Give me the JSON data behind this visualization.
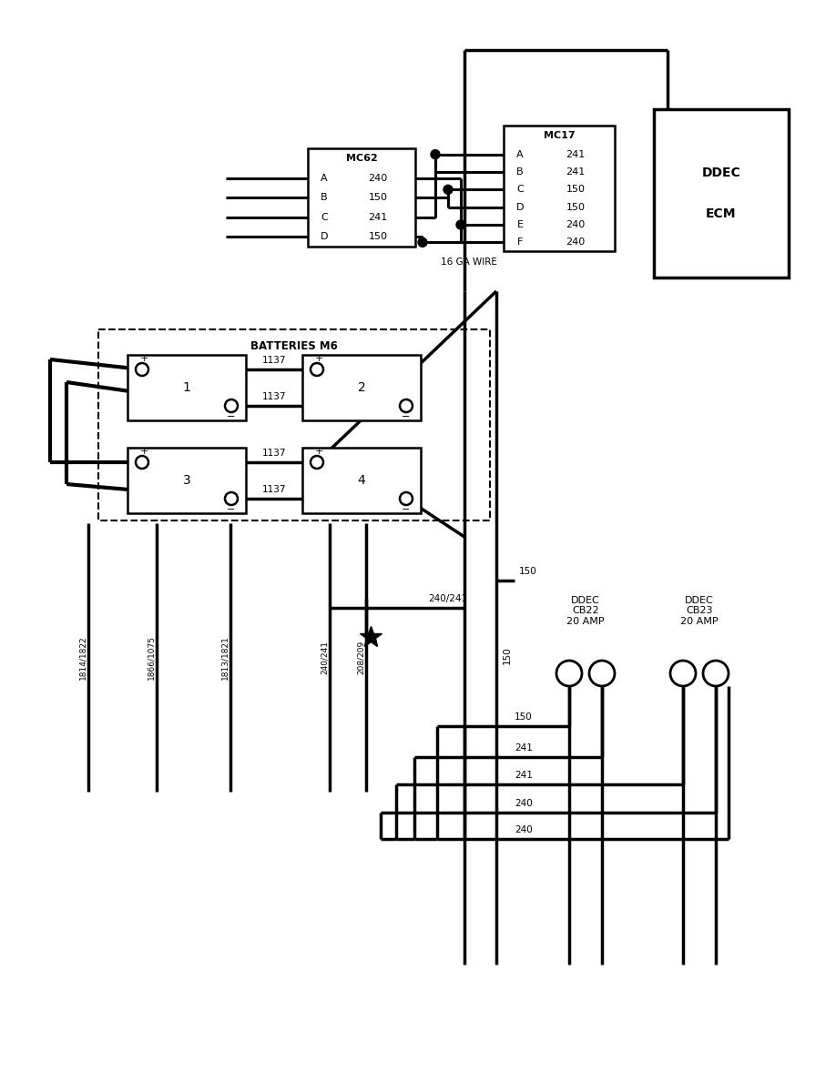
{
  "bg_color": "#ffffff",
  "mc62_rows": [
    [
      "A",
      "240"
    ],
    [
      "B",
      "150"
    ],
    [
      "C",
      "241"
    ],
    [
      "D",
      "150"
    ]
  ],
  "mc17_rows": [
    [
      "A",
      "241"
    ],
    [
      "B",
      "241"
    ],
    [
      "C",
      "150"
    ],
    [
      "D",
      "150"
    ],
    [
      "E",
      "240"
    ],
    [
      "F",
      "240"
    ]
  ],
  "batteries_label": "BATTERIES M6",
  "cb22_label": "DDEC\nCB22\n20 AMP",
  "cb23_label": "DDEC\nCB23\n20 AMP",
  "ecm_label1": "DDEC",
  "ecm_label2": "ECM",
  "ga_wire_label": "16 GA WIRE",
  "wire_vert_labels": [
    "1814/1822",
    "1866/1075",
    "1813/1821",
    "240/241",
    "208/209"
  ],
  "label_150": "150",
  "label_241": "241",
  "label_240": "240",
  "label_240_241": "240/241"
}
